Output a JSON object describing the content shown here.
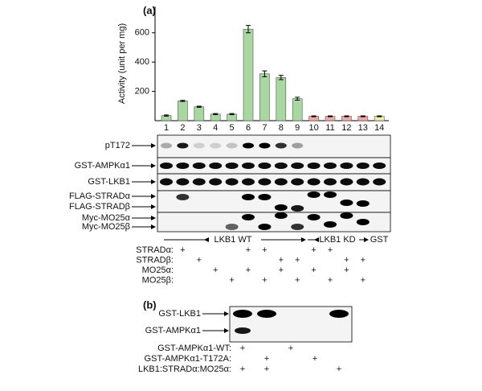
{
  "panel_a_label": "(a)",
  "chart_data": {
    "type": "bar",
    "ylabel": "Activity (unit per mg)",
    "categories": [
      "1",
      "2",
      "3",
      "4",
      "5",
      "6",
      "7",
      "8",
      "9",
      "10",
      "11",
      "12",
      "13",
      "14"
    ],
    "values": [
      35,
      135,
      95,
      45,
      45,
      625,
      320,
      295,
      150,
      30,
      30,
      30,
      30,
      30
    ],
    "errors": [
      4,
      4,
      4,
      4,
      4,
      25,
      20,
      15,
      10,
      3,
      3,
      3,
      3,
      3
    ],
    "colors": [
      "#a8d8a0",
      "#a8d8a0",
      "#a8d8a0",
      "#a8d8a0",
      "#a8d8a0",
      "#a8d8a0",
      "#a8d8a0",
      "#a8d8a0",
      "#a8d8a0",
      "#f2aaa2",
      "#f2aaa2",
      "#f2aaa2",
      "#f2aaa2",
      "#f0eea0"
    ],
    "ylim": [
      0,
      780
    ],
    "yticks": [
      200,
      400,
      600
    ],
    "grid": false
  },
  "blot_a": {
    "labels": [
      "pT172",
      "GST-AMPKα1",
      "GST-LKB1",
      "FLAG-STRADα",
      "FLAG-STRADβ",
      "Myc-MO25α",
      "Myc-MO25β"
    ],
    "groups": [
      "LKB1 WT",
      "LKB1 KD",
      "GST"
    ],
    "rows": [
      {
        "label": "STRADα:",
        "cells": [
          null,
          "+",
          null,
          null,
          null,
          "+",
          "+",
          null,
          null,
          "+",
          "+",
          null,
          null,
          null
        ]
      },
      {
        "label": "STRADβ:",
        "cells": [
          null,
          null,
          "+",
          null,
          null,
          null,
          null,
          "+",
          "+",
          null,
          null,
          "+",
          "+",
          null
        ]
      },
      {
        "label": "MO25α:",
        "cells": [
          null,
          null,
          null,
          "+",
          null,
          "+",
          null,
          "+",
          null,
          "+",
          null,
          "+",
          null,
          null
        ]
      },
      {
        "label": "MO25β:",
        "cells": [
          null,
          null,
          null,
          null,
          "+",
          null,
          "+",
          null,
          "+",
          null,
          "+",
          null,
          "+",
          null
        ]
      }
    ]
  },
  "panel_b_label": "(b)",
  "blot_b": {
    "labels": [
      "GST-LKB1",
      "GST-AMPKα1"
    ],
    "rows": [
      {
        "label": "GST-AMPKα1-WT:",
        "cells": [
          "+",
          null,
          "+",
          null,
          null
        ]
      },
      {
        "label": "GST-AMPKα1-T172A:",
        "cells": [
          null,
          "+",
          null,
          "+",
          null
        ]
      },
      {
        "label": "LKB1:STRADα:MO25α:",
        "cells": [
          "+",
          "+",
          null,
          null,
          "+"
        ]
      }
    ]
  }
}
